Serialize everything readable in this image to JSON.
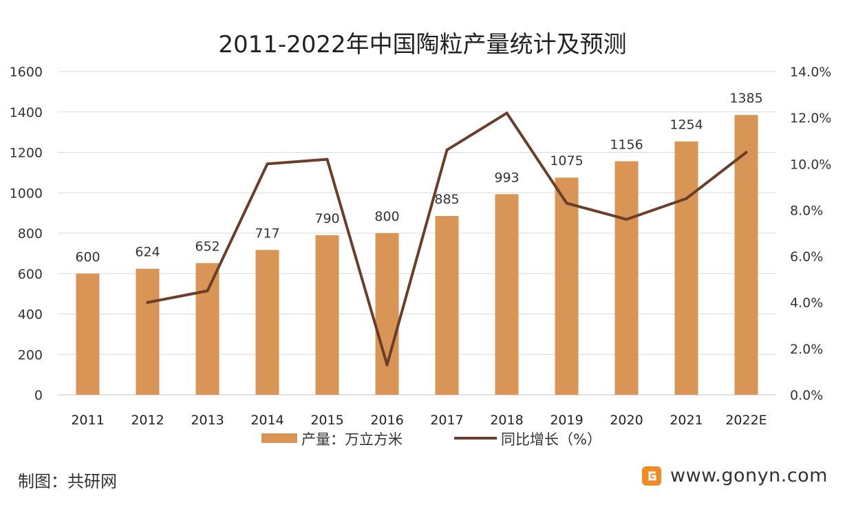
{
  "colors": {
    "bar": "#D99555",
    "line": "#6B3E2A",
    "grid": "#D9D9D9",
    "text": "#333333",
    "logo_orange": "#F08A24"
  },
  "footer": {
    "source": "制图：共研网",
    "site": "www.gonyn.com",
    "logo_icon": "gonyn-logo-icon"
  },
  "chart_data": {
    "type": "bar",
    "title": "2011-2022年中国陶粒产量统计及预测",
    "categories": [
      "2011",
      "2012",
      "2013",
      "2014",
      "2015",
      "2016",
      "2017",
      "2018",
      "2019",
      "2020",
      "2021",
      "2022E"
    ],
    "y_ticks": [
      "0",
      "200",
      "400",
      "600",
      "800",
      "1000",
      "1200",
      "1400",
      "1600"
    ],
    "y2_ticks": [
      "0.0%",
      "2.0%",
      "4.0%",
      "6.0%",
      "8.0%",
      "10.0%",
      "12.0%",
      "14.0%"
    ],
    "ylim": [
      0,
      1600
    ],
    "y2lim": [
      0,
      14
    ],
    "grid": true,
    "legend_position": "bottom",
    "series": [
      {
        "name": "产量：万立方米",
        "type": "bar",
        "axis": "left",
        "values": [
          600,
          624,
          652,
          717,
          790,
          800,
          885,
          993,
          1075,
          1156,
          1254,
          1385
        ],
        "labels": [
          "600",
          "624",
          "652",
          "717",
          "790",
          "800",
          "885",
          "993",
          "1075",
          "1156",
          "1254",
          "1385"
        ]
      },
      {
        "name": "同比增长（%）",
        "type": "line",
        "axis": "right",
        "values": [
          null,
          4.0,
          4.5,
          10.0,
          10.2,
          1.3,
          10.6,
          12.2,
          8.3,
          7.6,
          8.5,
          10.5
        ]
      }
    ]
  }
}
